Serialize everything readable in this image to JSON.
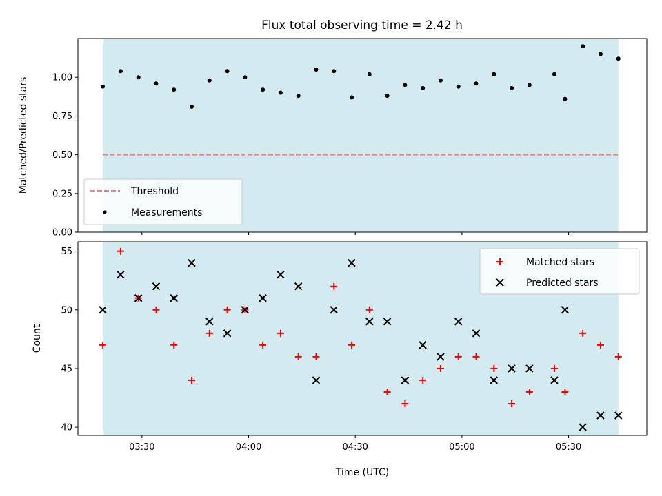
{
  "title": "Flux total observing time = 2.42 h",
  "colors": {
    "band": "#d3eaf0",
    "threshold": "#f08080",
    "measurement": "#000000",
    "matched": "#ff0000",
    "predicted": "#000000"
  },
  "chart_data": [
    {
      "type": "scatter",
      "ylabel": "Matched/Predicted stars",
      "ylim": [
        0,
        1.25
      ],
      "yticks": [
        "0.00",
        "0.25",
        "0.50",
        "0.75",
        "1.00"
      ],
      "ytick_values": [
        0,
        0.25,
        0.5,
        0.75,
        1.0
      ],
      "threshold": 0.5,
      "legend": {
        "placement": "lower-left",
        "entries": [
          "Threshold",
          "Measurements"
        ]
      },
      "shaded_span": [
        "03:19",
        "05:44"
      ],
      "series": [
        {
          "name": "Measurements",
          "x": [
            "03:19",
            "03:24",
            "03:29",
            "03:34",
            "03:39",
            "03:44",
            "03:49",
            "03:54",
            "03:59",
            "04:04",
            "04:09",
            "04:14",
            "04:19",
            "04:24",
            "04:29",
            "04:34",
            "04:39",
            "04:44",
            "04:49",
            "04:54",
            "04:59",
            "05:04",
            "05:09",
            "05:14",
            "05:19",
            "05:26",
            "05:29",
            "05:34",
            "05:39",
            "05:44"
          ],
          "y": [
            0.94,
            1.04,
            1.0,
            0.96,
            0.92,
            0.81,
            0.98,
            1.04,
            1.0,
            0.92,
            0.9,
            0.88,
            1.05,
            1.04,
            0.87,
            1.02,
            0.88,
            0.95,
            0.93,
            0.98,
            0.94,
            0.96,
            1.02,
            0.93,
            0.95,
            1.02,
            0.86,
            1.2,
            1.15,
            1.12
          ]
        }
      ]
    },
    {
      "type": "scatter",
      "xlabel": "Time (UTC)",
      "ylabel": "Count",
      "ylim": [
        39.3,
        55.8
      ],
      "yticks": [
        "40",
        "45",
        "50",
        "55"
      ],
      "ytick_values": [
        40,
        45,
        50,
        55
      ],
      "xticks": [
        "03:30",
        "04:00",
        "04:30",
        "05:00",
        "05:30"
      ],
      "xlim": [
        "03:12",
        "05:52"
      ],
      "legend": {
        "placement": "upper-right",
        "entries": [
          "Matched stars",
          "Predicted stars"
        ]
      },
      "shaded_span": [
        "03:19",
        "05:44"
      ],
      "x": [
        "03:19",
        "03:24",
        "03:29",
        "03:34",
        "03:39",
        "03:44",
        "03:49",
        "03:54",
        "03:59",
        "04:04",
        "04:09",
        "04:14",
        "04:19",
        "04:24",
        "04:29",
        "04:34",
        "04:39",
        "04:44",
        "04:49",
        "04:54",
        "04:59",
        "05:04",
        "05:09",
        "05:14",
        "05:19",
        "05:26",
        "05:29",
        "05:34",
        "05:39",
        "05:44"
      ],
      "series": [
        {
          "name": "Matched stars",
          "values": [
            47,
            55,
            51,
            50,
            47,
            44,
            48,
            50,
            50,
            47,
            48,
            46,
            46,
            52,
            47,
            50,
            43,
            42,
            44,
            45,
            46,
            46,
            45,
            42,
            43,
            45,
            43,
            48,
            47,
            46
          ]
        },
        {
          "name": "Predicted stars",
          "values": [
            50,
            53,
            51,
            52,
            51,
            54,
            49,
            48,
            50,
            51,
            53,
            52,
            44,
            50,
            54,
            49,
            49,
            44,
            47,
            46,
            49,
            48,
            44,
            45,
            45,
            44,
            50,
            40,
            41,
            41
          ]
        }
      ]
    }
  ]
}
